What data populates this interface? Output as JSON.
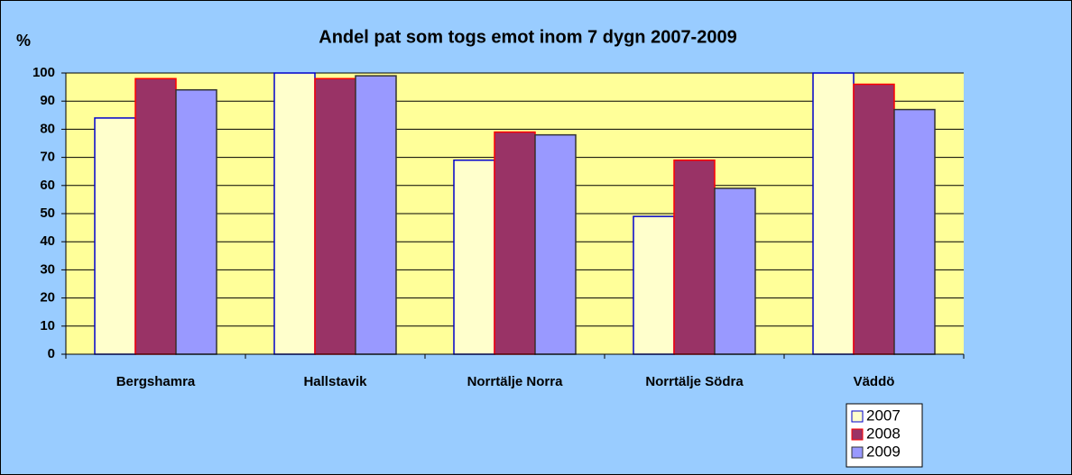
{
  "chart_data": {
    "type": "bar",
    "title": "Andel pat som togs emot inom 7 dygn 2007-2009",
    "y_label": "%",
    "categories": [
      "Bergshamra",
      "Hallstavik",
      "Norrtälje Norra",
      "Norrtälje Södra",
      "Väddö"
    ],
    "series": [
      {
        "name": "2007",
        "color": "#ffffcc",
        "border": "#0000cc",
        "values": [
          84,
          100,
          69,
          49,
          100
        ]
      },
      {
        "name": "2008",
        "color": "#993366",
        "border": "#ff0000",
        "values": [
          98,
          98,
          79,
          69,
          96
        ]
      },
      {
        "name": "2009",
        "color": "#9999ff",
        "border": "#333333",
        "values": [
          94,
          99,
          78,
          59,
          87
        ]
      }
    ],
    "ylim": [
      0,
      100
    ],
    "yticks": [
      0,
      10,
      20,
      30,
      40,
      50,
      60,
      70,
      80,
      90,
      100
    ],
    "grid": true,
    "legend": "bottom-right"
  }
}
